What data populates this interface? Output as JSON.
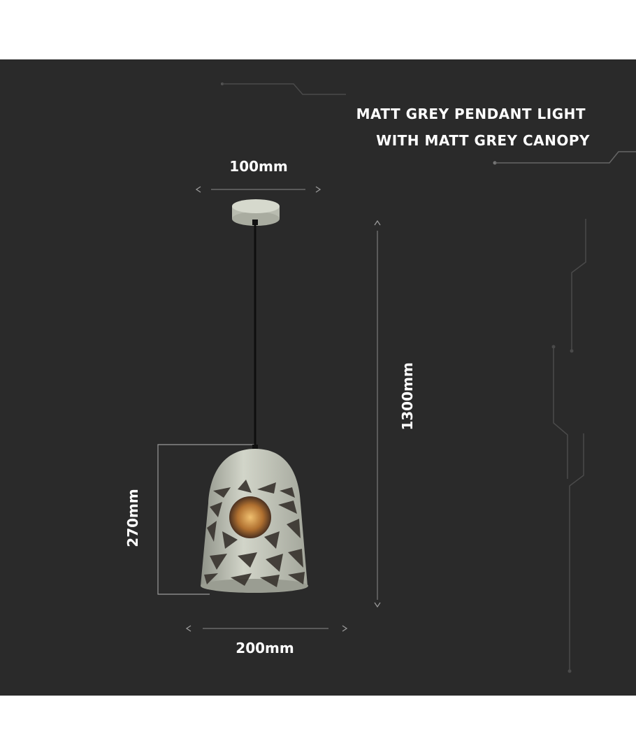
{
  "title": {
    "line1": "MATT GREY PENDANT LIGHT",
    "line2": "WITH MATT GREY CANOPY"
  },
  "dimensions": {
    "canopy_width": "100mm",
    "total_height": "1300mm",
    "shade_height": "270mm",
    "shade_width": "200mm"
  },
  "colors": {
    "background": "#2a2a2a",
    "text": "#ffffff",
    "lamp_body": "#c9ccbf",
    "bulb": "#c8893a"
  }
}
